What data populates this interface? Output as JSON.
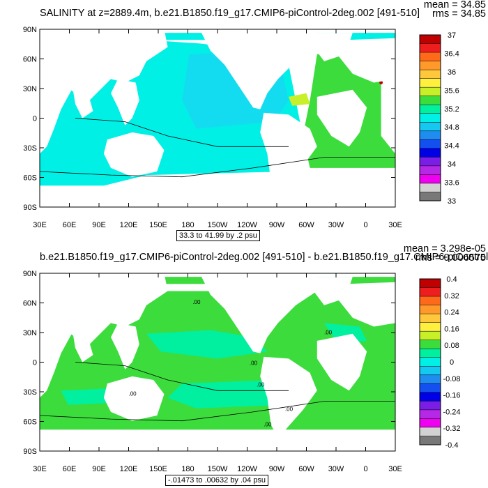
{
  "chart_data": [
    {
      "type": "heatmap",
      "title": "SALINITY at z=2889.4m, b.e21.B1850.f19_g17.CMIP6-piControl-2deg.002 [491-510]",
      "mean_text": "mean = 34.85",
      "rms_text": "rms = 34.85",
      "range_text": "33.3 to 41.99 by .2 psu",
      "x_tick_labels": [
        "30E",
        "60E",
        "90E",
        "120E",
        "150E",
        "180",
        "150W",
        "120W",
        "90W",
        "60W",
        "30W",
        "0",
        "30E"
      ],
      "y_tick_labels": [
        "90N",
        "60N",
        "30N",
        "0",
        "30S",
        "60S",
        "90S"
      ],
      "colorbar_labels": [
        "37",
        "36.4",
        "36",
        "35.6",
        "35.2",
        "34.8",
        "34.4",
        "34",
        "33.6",
        "33"
      ],
      "colorbar_colors": [
        "#c00000",
        "#ee1e1e",
        "#ff6a1a",
        "#ff9a2a",
        "#ffc83c",
        "#fff040",
        "#c8f028",
        "#3cdc3c",
        "#00f0a0",
        "#00f0e6",
        "#14c8f0",
        "#1e8cf0",
        "#1450f0",
        "#0000e6",
        "#7a1ee6",
        "#b428e6",
        "#f000f0",
        "#d2d2d2",
        "#787878"
      ],
      "contour_labels": []
    },
    {
      "type": "heatmap",
      "title": "b.e21.B1850.f19_g17.CMIP6-piControl-2deg.002 [491-510] - b.e21.B1850.f19_g17.CMIP6-piControl-2de",
      "mean_text": "mean = 3.298e-05",
      "rms_text": "rms = 0.006575",
      "range_text": "-.01473 to .00632 by .04 psu",
      "x_tick_labels": [
        "30E",
        "60E",
        "90E",
        "120E",
        "150E",
        "180",
        "150W",
        "120W",
        "90W",
        "60W",
        "30W",
        "0",
        "30E"
      ],
      "y_tick_labels": [
        "90N",
        "60N",
        "30N",
        "0",
        "30S",
        "60S",
        "90S"
      ],
      "colorbar_labels": [
        "0.4",
        "0.32",
        "0.24",
        "0.16",
        "0.08",
        "0",
        "-0.08",
        "-0.16",
        "-0.24",
        "-0.32",
        "-0.4"
      ],
      "colorbar_colors": [
        "#c00000",
        "#ee1e1e",
        "#ff6a1a",
        "#ff9a2a",
        "#ffc83c",
        "#fff040",
        "#c8f028",
        "#3cdc3c",
        "#00f0a0",
        "#00f0e6",
        "#14c8f0",
        "#1e8cf0",
        "#1450f0",
        "#0000e6",
        "#7a1ee6",
        "#b428e6",
        "#f000f0",
        "#d2d2d2",
        "#787878"
      ],
      "contour_labels": [
        ".00",
        ".00",
        ".00",
        ".00",
        ".00",
        ".00",
        ".00"
      ]
    }
  ]
}
